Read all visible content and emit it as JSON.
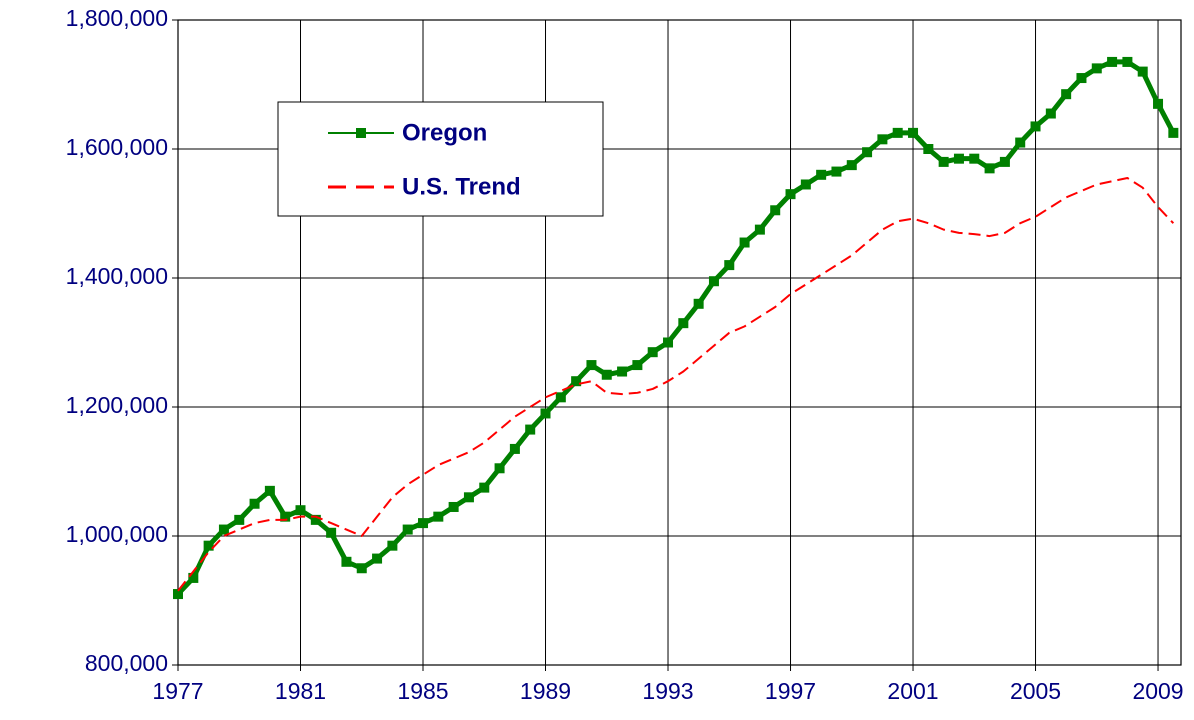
{
  "chart_data": {
    "type": "line",
    "x": [
      1977,
      1977.5,
      1978,
      1978.5,
      1979,
      1979.5,
      1980,
      1980.5,
      1981,
      1981.5,
      1982,
      1982.5,
      1983,
      1983.5,
      1984,
      1984.5,
      1985,
      1985.5,
      1986,
      1986.5,
      1987,
      1987.5,
      1988,
      1988.5,
      1989,
      1989.5,
      1990,
      1990.5,
      1991,
      1991.5,
      1992,
      1992.5,
      1993,
      1993.5,
      1994,
      1994.5,
      1995,
      1995.5,
      1996,
      1996.5,
      1997,
      1997.5,
      1998,
      1998.5,
      1999,
      1999.5,
      2000,
      2000.5,
      2001,
      2001.5,
      2002,
      2002.5,
      2003,
      2003.5,
      2004,
      2004.5,
      2005,
      2005.5,
      2006,
      2006.5,
      2007,
      2007.5,
      2008,
      2008.5,
      2009,
      2009.5
    ],
    "series": [
      {
        "name": "Oregon",
        "color": "#008000",
        "style": "solid",
        "markers": true,
        "values": [
          910000,
          935000,
          985000,
          1010000,
          1025000,
          1050000,
          1070000,
          1030000,
          1040000,
          1025000,
          1005000,
          960000,
          950000,
          965000,
          985000,
          1010000,
          1020000,
          1030000,
          1045000,
          1060000,
          1075000,
          1105000,
          1135000,
          1165000,
          1190000,
          1215000,
          1240000,
          1265000,
          1250000,
          1255000,
          1265000,
          1285000,
          1300000,
          1330000,
          1360000,
          1395000,
          1420000,
          1455000,
          1475000,
          1505000,
          1530000,
          1545000,
          1560000,
          1565000,
          1575000,
          1595000,
          1615000,
          1625000,
          1625000,
          1600000,
          1580000,
          1585000,
          1585000,
          1570000,
          1580000,
          1610000,
          1635000,
          1655000,
          1685000,
          1710000,
          1725000,
          1735000,
          1735000,
          1720000,
          1670000,
          1625000
        ]
      },
      {
        "name": "U.S. Trend",
        "color": "#ff0000",
        "style": "dashed",
        "markers": false,
        "values": [
          915000,
          945000,
          975000,
          1000000,
          1010000,
          1020000,
          1025000,
          1025000,
          1030000,
          1030000,
          1020000,
          1010000,
          1000000,
          1030000,
          1060000,
          1080000,
          1095000,
          1110000,
          1120000,
          1130000,
          1145000,
          1165000,
          1185000,
          1200000,
          1215000,
          1225000,
          1235000,
          1240000,
          1222000,
          1220000,
          1222000,
          1228000,
          1240000,
          1255000,
          1275000,
          1295000,
          1315000,
          1325000,
          1340000,
          1355000,
          1375000,
          1390000,
          1405000,
          1420000,
          1435000,
          1455000,
          1475000,
          1488000,
          1492000,
          1485000,
          1475000,
          1470000,
          1468000,
          1465000,
          1470000,
          1485000,
          1495000,
          1510000,
          1525000,
          1535000,
          1545000,
          1550000,
          1555000,
          1540000,
          1510000,
          1485000
        ]
      }
    ],
    "xlim": [
      1977,
      2009.75
    ],
    "xticks": [
      1977,
      1981,
      1985,
      1989,
      1993,
      1997,
      2001,
      2005,
      2009
    ],
    "ylim": [
      800000,
      1800000
    ],
    "yticks": [
      {
        "value": 800000,
        "label": "800,000"
      },
      {
        "value": 1000000,
        "label": "1,000,000"
      },
      {
        "value": 1200000,
        "label": "1,200,000"
      },
      {
        "value": 1400000,
        "label": "1,400,000"
      },
      {
        "value": 1600000,
        "label": "1,600,000"
      },
      {
        "value": 1800000,
        "label": "1,800,000"
      }
    ],
    "grid": true,
    "legend": "upper left"
  }
}
